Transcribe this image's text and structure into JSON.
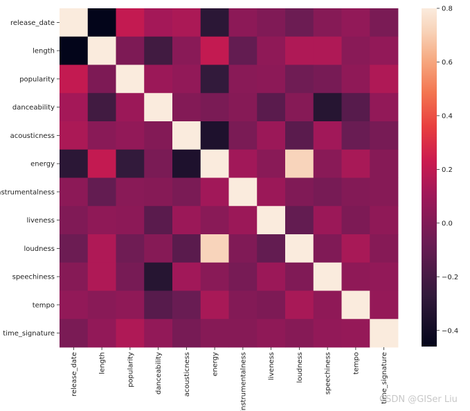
{
  "chart_data": {
    "type": "heatmap",
    "title": "",
    "xlabel": "",
    "ylabel": "",
    "categories": [
      "release_date",
      "length",
      "popularity",
      "danceability",
      "acousticness",
      "energy",
      "instrumentalness",
      "liveness",
      "loudness",
      "speechiness",
      "tempo",
      "time_signature"
    ],
    "matrix": [
      [
        1.0,
        -0.46,
        0.21,
        0.12,
        0.14,
        -0.3,
        0.04,
        0.0,
        -0.07,
        0.02,
        0.06,
        -0.02
      ],
      [
        -0.46,
        1.0,
        -0.01,
        -0.22,
        0.03,
        0.21,
        -0.1,
        0.05,
        0.15,
        0.15,
        0.03,
        0.06
      ],
      [
        0.21,
        -0.01,
        1.0,
        0.09,
        0.06,
        -0.27,
        0.03,
        0.04,
        -0.06,
        -0.03,
        0.05,
        0.15
      ],
      [
        0.12,
        -0.22,
        0.09,
        1.0,
        0.01,
        -0.02,
        0.02,
        -0.13,
        0.02,
        -0.32,
        -0.14,
        0.06
      ],
      [
        0.14,
        0.03,
        0.06,
        0.01,
        1.0,
        -0.35,
        -0.02,
        0.09,
        -0.13,
        0.11,
        -0.08,
        -0.03
      ],
      [
        -0.3,
        0.21,
        -0.27,
        -0.02,
        -0.35,
        1.0,
        0.11,
        0.03,
        0.72,
        0.03,
        0.13,
        0.02
      ],
      [
        0.04,
        -0.1,
        0.03,
        0.02,
        -0.02,
        0.11,
        1.0,
        0.09,
        0.0,
        -0.03,
        0.01,
        0.02
      ],
      [
        0.0,
        0.05,
        0.04,
        -0.13,
        0.09,
        0.03,
        0.09,
        1.0,
        -0.1,
        0.09,
        -0.01,
        0.05
      ],
      [
        -0.07,
        0.15,
        -0.06,
        0.02,
        -0.13,
        0.72,
        0.0,
        -0.1,
        1.0,
        0.0,
        0.13,
        0.02
      ],
      [
        0.02,
        0.15,
        -0.03,
        -0.32,
        0.11,
        0.03,
        -0.03,
        0.09,
        0.0,
        1.0,
        0.05,
        0.06
      ],
      [
        0.06,
        0.03,
        0.05,
        -0.14,
        -0.08,
        0.13,
        0.01,
        -0.01,
        0.13,
        0.05,
        1.0,
        0.07
      ],
      [
        -0.02,
        0.06,
        0.15,
        0.06,
        -0.03,
        0.02,
        0.02,
        0.05,
        0.02,
        0.06,
        0.07,
        1.0
      ]
    ],
    "colorbar": {
      "colormap": "rocket",
      "vmin": -0.46,
      "vmax": 0.8,
      "ticks": [
        -0.4,
        -0.2,
        0.0,
        0.2,
        0.4,
        0.6,
        0.8
      ],
      "tick_labels": [
        "−0.4",
        "−0.2",
        "0.0",
        "0.2",
        "0.4",
        "0.6",
        "0.8"
      ]
    }
  },
  "watermark": "CSDN @GISer Liu"
}
